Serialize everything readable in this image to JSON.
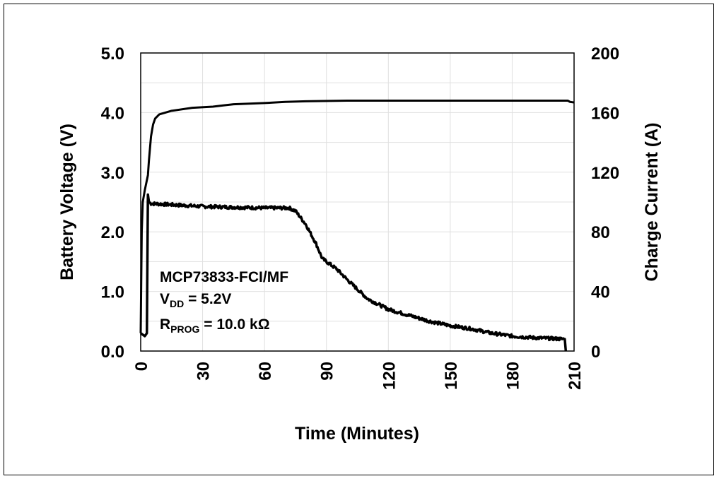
{
  "chart_data": {
    "type": "line",
    "title": "",
    "xlabel": "Time (Minutes)",
    "ylabel": "Battery Voltage (V)",
    "y2label": "Charge Current (A)",
    "xlim": [
      0,
      210
    ],
    "ylim": [
      0,
      5
    ],
    "y2lim": [
      0,
      200
    ],
    "xticks": [
      "0",
      "30",
      "60",
      "90",
      "120",
      "150",
      "180",
      "210"
    ],
    "yticks": [
      "0.0",
      "1.0",
      "2.0",
      "3.0",
      "4.0",
      "5.0"
    ],
    "y2ticks": [
      "0",
      "40",
      "80",
      "120",
      "160",
      "200"
    ],
    "grid": true,
    "line_color": "#000000",
    "grid_color": "#e0e0e0",
    "annotation": {
      "line1": "MCP73833-FCI/MF",
      "line2_main": "V",
      "line2_sub": "DD",
      "line2_rest": " = 5.2V",
      "line3_main": "R",
      "line3_sub": "PROG",
      "line3_rest": " = 10.0 kΩ"
    },
    "series": [
      {
        "axis": "left",
        "x": [
          0,
          0.5,
          1,
          2,
          3.5,
          4,
          5,
          6,
          7,
          9,
          15,
          25,
          35,
          40,
          45,
          60,
          70,
          80,
          100,
          207,
          208,
          210
        ],
        "y": [
          0.3,
          2.0,
          2.5,
          2.7,
          2.95,
          3.2,
          3.6,
          3.8,
          3.9,
          3.97,
          4.03,
          4.08,
          4.1,
          4.12,
          4.14,
          4.16,
          4.18,
          4.19,
          4.2,
          4.2,
          4.18,
          4.17
        ]
      },
      {
        "axis": "right",
        "x": [
          0,
          2,
          3,
          3.5,
          4,
          5,
          30,
          60,
          72,
          75,
          80,
          85,
          88,
          95,
          100,
          110,
          120,
          130,
          140,
          150,
          160,
          170,
          180,
          190,
          205.5,
          206
        ],
        "y": [
          12,
          10,
          12,
          105,
          100,
          99,
          97,
          96,
          96,
          94,
          85,
          72,
          62,
          55,
          48,
          35,
          28,
          24,
          20,
          17,
          15,
          12,
          10,
          9,
          8,
          0
        ]
      }
    ]
  }
}
